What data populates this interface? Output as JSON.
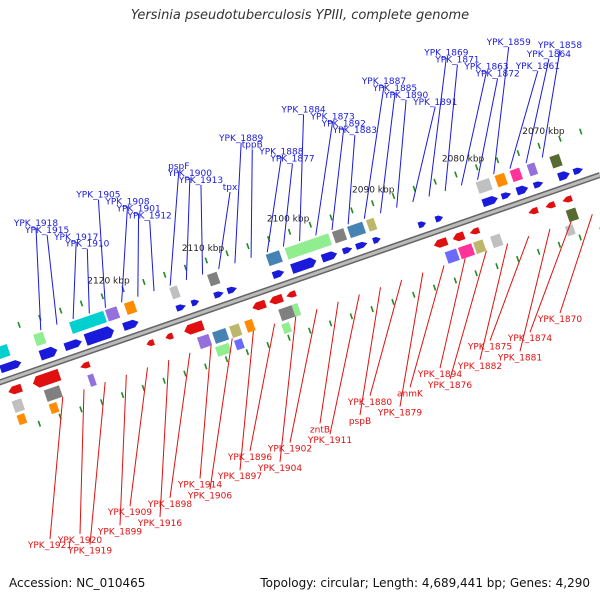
{
  "title": "Yersinia pseudotuberculosis YPIII, complete genome",
  "footer": {
    "accession": "Accession: NC_010465",
    "stats": "Topology: circular; Length: 4,689,441 bp; Genes: 4,290"
  },
  "colors": {
    "forward": "#1a1adb",
    "reverse": "#e01010",
    "backbone": "#999999",
    "tick": "#228b22"
  },
  "ticks": [
    "2070 kbp",
    "2080 kbp",
    "2090 kbp",
    "2100 kbp",
    "2110 kbp",
    "2120 kbp"
  ],
  "forward_labels": [
    "YPK_1858",
    "YPK_1864",
    "YPK_1861",
    "YPK_1859",
    "YPK_1872",
    "YPK_1863",
    "YPK_1871",
    "YPK_1869",
    "YPK_1891",
    "YPK_1890",
    "YPK_1885",
    "YPK_1887",
    "YPK_1883",
    "YPK_1892",
    "YPK_1873",
    "YPK_1884",
    "YPK_1877",
    "YPK_1888",
    "tppB",
    "YPK_1889",
    "tpx",
    "YPK_1913",
    "YPK_1900",
    "pspF",
    "YPK_1912",
    "YPK_1901",
    "YPK_1908",
    "YPK_1905",
    "YPK_1910",
    "YPK_1917",
    "YPK_1915",
    "YPK_1918"
  ],
  "reverse_labels": [
    "YPK_1870",
    "YPK_1874",
    "YPK_1881",
    "YPK_1875",
    "YPK_1882",
    "YPK_1876",
    "YPK_1894",
    "anmK",
    "YPK_1879",
    "YPK_1880",
    "pspB",
    "YPK_1911",
    "zntB",
    "YPK_1902",
    "YPK_1904",
    "YPK_1896",
    "YPK_1897",
    "YPK_1906",
    "YPK_1914",
    "YPK_1898",
    "YPK_1916",
    "YPK_1909",
    "YPK_1899",
    "YPK_1919",
    "YPK_1920",
    "YPK_1921"
  ]
}
